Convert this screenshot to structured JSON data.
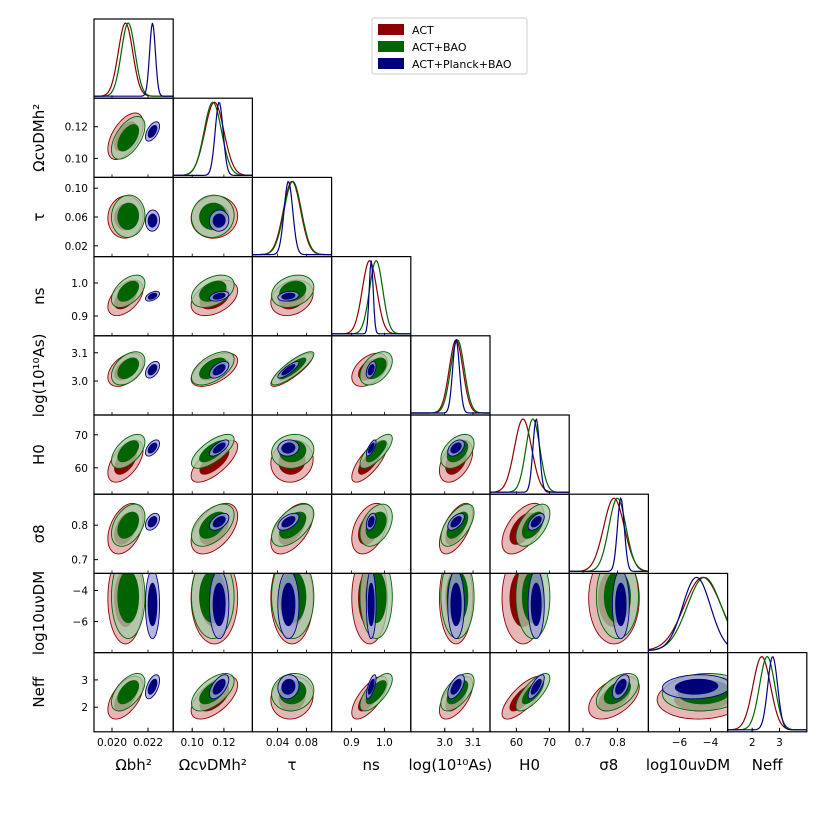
{
  "chart_data": {
    "type": "triangle-corner-plot",
    "parameters": [
      {
        "key": "ob",
        "label": "Ωbh²",
        "ticks": [
          {
            "v": 0.02,
            "t": "0.020"
          },
          {
            "v": 0.022,
            "t": "0.022"
          }
        ],
        "range": [
          0.019,
          0.0234
        ]
      },
      {
        "key": "oc",
        "label": "ΩcνDMh²",
        "ticks": [
          {
            "v": 0.1,
            "t": "0.10"
          },
          {
            "v": 0.12,
            "t": "0.12"
          }
        ],
        "range": [
          0.088,
          0.138
        ]
      },
      {
        "key": "tau",
        "label": "τ",
        "ticks": [
          {
            "v": 0.02,
            "t": "0.02"
          },
          {
            "v": 0.06,
            "t": "0.06"
          },
          {
            "v": 0.1,
            "t": "0.10"
          }
        ],
        "xticks": [
          {
            "v": 0.04,
            "t": "0.04"
          },
          {
            "v": 0.08,
            "t": "0.08"
          }
        ],
        "range": [
          0.005,
          0.115
        ]
      },
      {
        "key": "ns",
        "label": "ns",
        "ticks": [
          {
            "v": 0.9,
            "t": "0.9"
          },
          {
            "v": 1.0,
            "t": "1.0"
          }
        ],
        "range": [
          0.84,
          1.08
        ]
      },
      {
        "key": "as",
        "label": "log(10¹⁰As)",
        "ticks": [
          {
            "v": 3.0,
            "t": "3.0"
          },
          {
            "v": 3.1,
            "t": "3.1"
          }
        ],
        "range": [
          2.88,
          3.16
        ]
      },
      {
        "key": "h0",
        "label": "H0",
        "ticks": [
          {
            "v": 60,
            "t": "60"
          },
          {
            "v": 70,
            "t": "70"
          }
        ],
        "range": [
          52,
          76
        ]
      },
      {
        "key": "s8",
        "label": "σ8",
        "ticks": [
          {
            "v": 0.7,
            "t": "0.7"
          },
          {
            "v": 0.8,
            "t": "0.8"
          }
        ],
        "range": [
          0.66,
          0.89
        ]
      },
      {
        "key": "u",
        "label": "log10uνDM",
        "ticks": [
          {
            "v": -6,
            "t": "−6"
          },
          {
            "v": -4,
            "t": "−4"
          }
        ],
        "range": [
          -8,
          -2.9
        ]
      },
      {
        "key": "neff",
        "label": "Neff",
        "ticks": [
          {
            "v": 2,
            "t": "2"
          },
          {
            "v": 3,
            "t": "3"
          }
        ],
        "range": [
          1.1,
          4.0
        ]
      }
    ],
    "series": [
      {
        "name": "ACT",
        "color": "#8b0000",
        "fill1": "#8b0000",
        "fill2": "#e0a3a3",
        "mean": [
          0.02075,
          0.114,
          0.06,
          0.955,
          3.04,
          62.0,
          0.79,
          -4.5,
          2.35
        ],
        "sd": [
          0.0004,
          0.006,
          0.012,
          0.022,
          0.024,
          2.6,
          0.03,
          1.2,
          0.32
        ]
      },
      {
        "name": "ACT+BAO",
        "color": "#006400",
        "fill1": "#006400",
        "fill2": "#a6c9a6",
        "mean": [
          0.0209,
          0.113,
          0.061,
          0.975,
          3.045,
          65.0,
          0.8,
          -4.4,
          2.55
        ],
        "sd": [
          0.00038,
          0.0055,
          0.012,
          0.02,
          0.024,
          2.1,
          0.025,
          1.1,
          0.28
        ]
      },
      {
        "name": "ACT+Planck+BAO",
        "color": "#000080",
        "fill1": "#00007a",
        "fill2": "#a3a3d6",
        "mean": [
          0.02225,
          0.117,
          0.055,
          0.96,
          3.04,
          66.0,
          0.81,
          -4.9,
          2.75
        ],
        "sd": [
          0.00016,
          0.0025,
          0.006,
          0.006,
          0.012,
          1.0,
          0.01,
          0.9,
          0.18
        ]
      }
    ],
    "correlation": [
      [
        1.0,
        0.55,
        0.05,
        0.5,
        0.45,
        0.55,
        0.4,
        0.0,
        0.55
      ],
      [
        0.55,
        1.0,
        0.05,
        0.4,
        0.55,
        0.7,
        0.5,
        0.0,
        0.6
      ],
      [
        0.05,
        0.05,
        1.0,
        0.25,
        0.85,
        0.1,
        0.55,
        0.0,
        0.1
      ],
      [
        0.5,
        0.4,
        0.25,
        1.0,
        0.45,
        0.75,
        0.4,
        0.0,
        0.7
      ],
      [
        0.45,
        0.55,
        0.85,
        0.45,
        1.0,
        0.45,
        0.6,
        0.0,
        0.6
      ],
      [
        0.55,
        0.7,
        0.1,
        0.75,
        0.45,
        1.0,
        0.55,
        0.0,
        0.75
      ],
      [
        0.4,
        0.5,
        0.55,
        0.4,
        0.6,
        0.55,
        1.0,
        0.0,
        0.5
      ],
      [
        0.0,
        0.0,
        0.0,
        0.0,
        0.0,
        0.0,
        0.0,
        1.0,
        0.1
      ],
      [
        0.55,
        0.6,
        0.1,
        0.7,
        0.6,
        0.75,
        0.5,
        0.1,
        1.0
      ]
    ],
    "legend": {
      "placement": "top-center",
      "entries": [
        "ACT",
        "ACT+BAO",
        "ACT+Planck+BAO"
      ]
    },
    "grid": false
  }
}
